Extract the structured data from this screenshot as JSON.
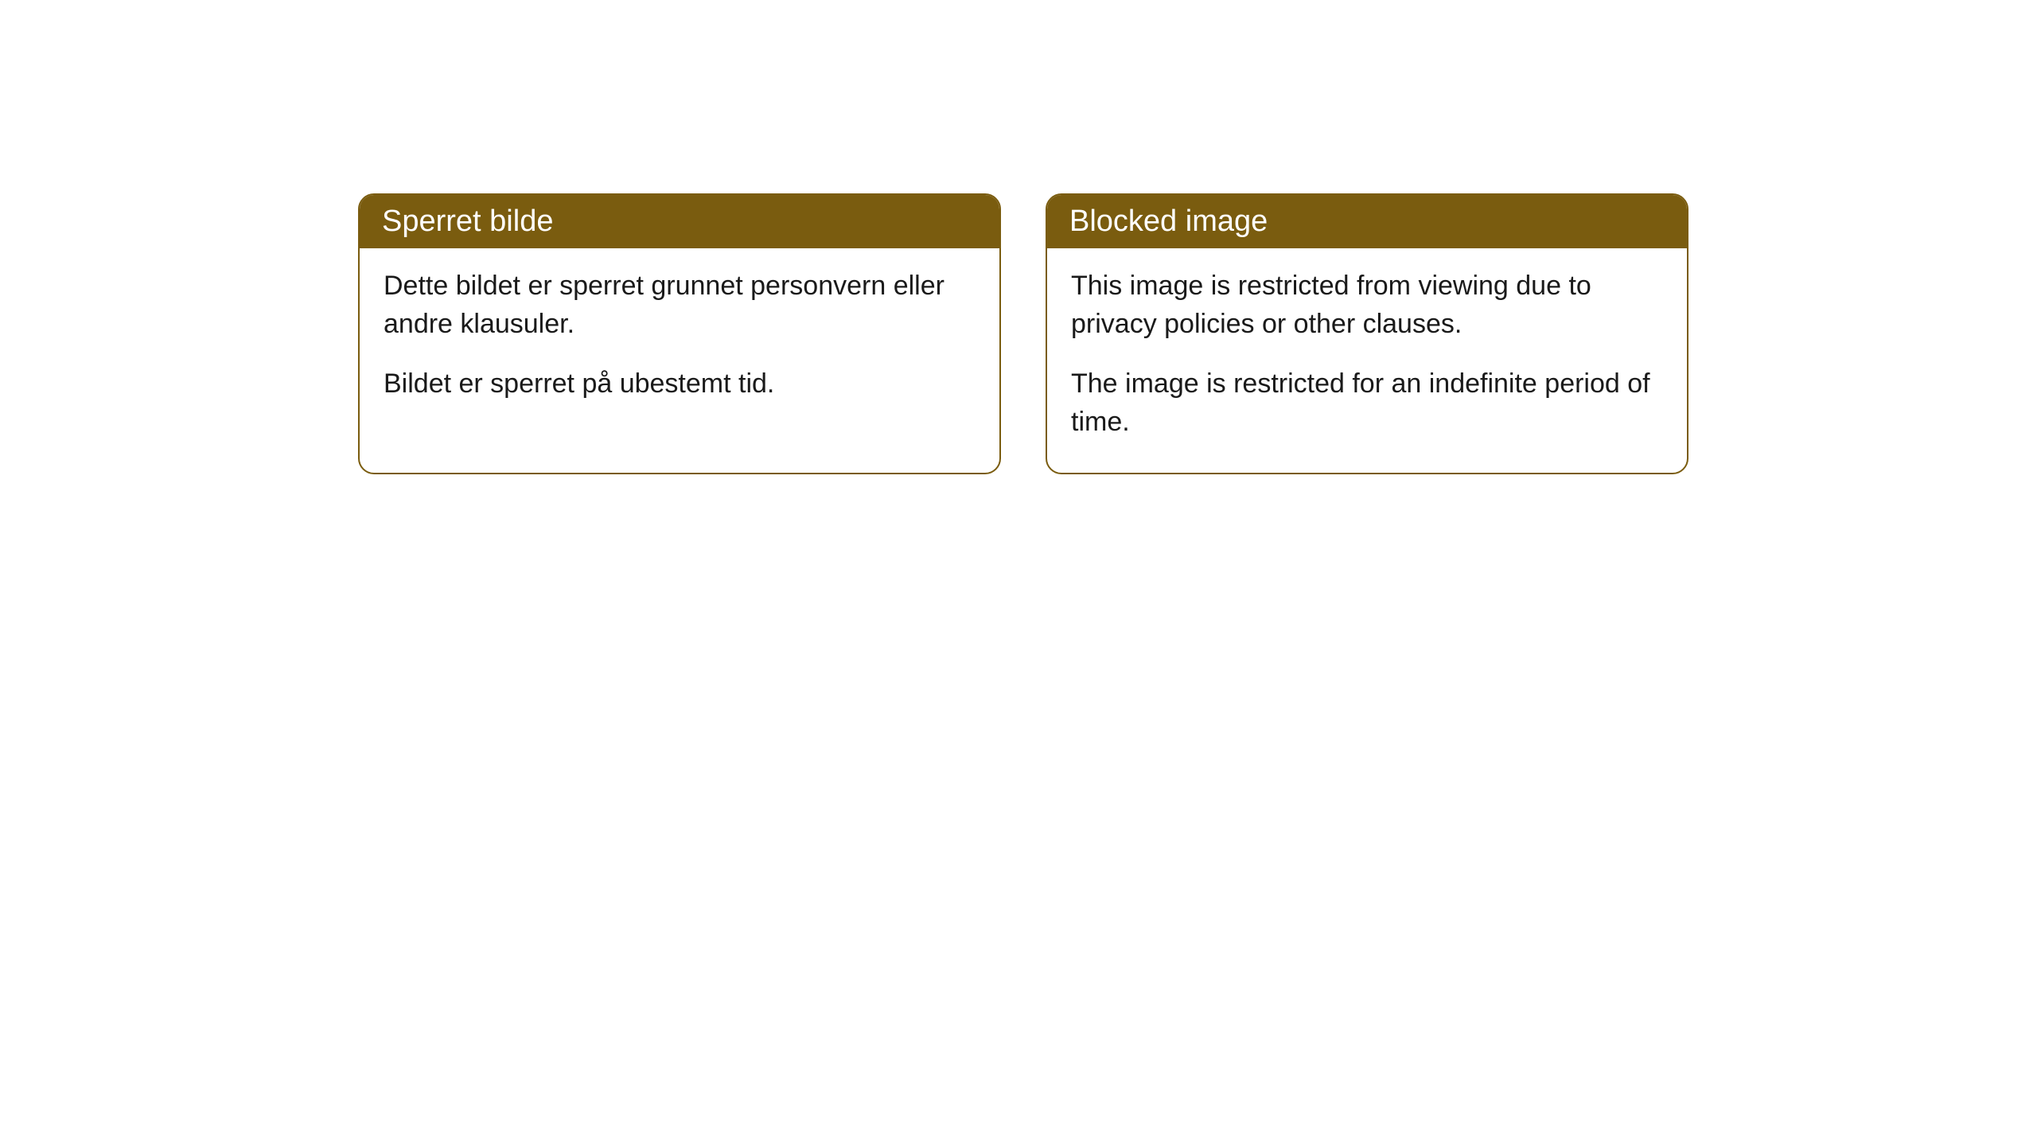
{
  "cards": [
    {
      "title": "Sperret bilde",
      "paragraph1": "Dette bildet er sperret grunnet personvern eller andre klausuler.",
      "paragraph2": "Bildet er sperret på ubestemt tid."
    },
    {
      "title": "Blocked image",
      "paragraph1": "This image is restricted from viewing due to privacy policies or other clauses.",
      "paragraph2": "The image is restricted for an indefinite period of time."
    }
  ],
  "styling": {
    "header_background": "#7a5c0f",
    "header_text_color": "#ffffff",
    "card_border_color": "#7a5c0f",
    "card_background": "#ffffff",
    "body_text_color": "#1a1a1a",
    "page_background": "#ffffff",
    "border_radius": 20,
    "title_fontsize": 38,
    "body_fontsize": 34
  }
}
